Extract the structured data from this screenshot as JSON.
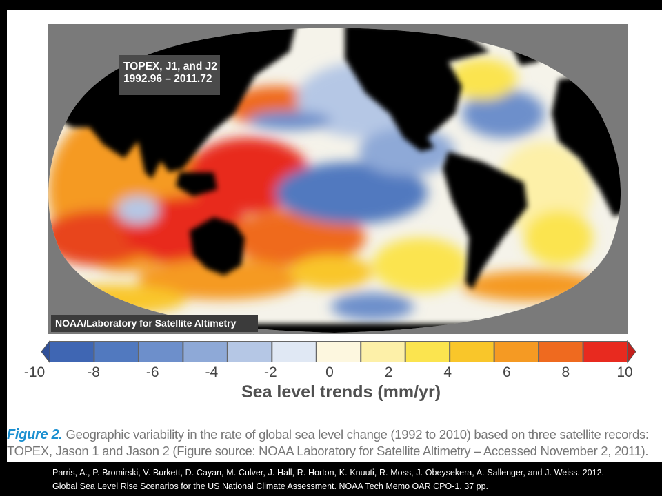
{
  "map": {
    "label_line1": "TOPEX, J1, and J2",
    "label_line2": "1992.96 – 2011.72",
    "credit": "NOAA/Laboratory for Satellite Altimetry"
  },
  "colorbar": {
    "title": "Sea level trends (mm/yr)",
    "ticks": [
      "-10",
      "-8",
      "-6",
      "-4",
      "-2",
      "0",
      "2",
      "4",
      "6",
      "8",
      "10"
    ],
    "colors": [
      "#3f66b3",
      "#5179bf",
      "#6d8fcb",
      "#8ea9d7",
      "#b5c7e5",
      "#e0e8f4",
      "#fdf7df",
      "#fdf0a8",
      "#fbe44f",
      "#f9c62a",
      "#f59a23",
      "#ef6a1f",
      "#e82a1f"
    ],
    "low_arrow_color": "#2f4f98",
    "high_arrow_color": "#c4201c"
  },
  "caption": {
    "figure_label": "Figure 2.",
    "text": " Geographic variability in the rate of global sea level change (1992 to 2010) based on three satellite records: TOPEX, Jason 1 and Jason 2 (Figure source: NOAA Laboratory for Satellite Altimetry – Accessed November 2, 2011)."
  },
  "citation": "Parris, A., P. Bromirski, V. Burkett, D. Cayan, M. Culver, J. Hall, R. Horton, K. Knuuti, R. Moss, J. Obeysekera, A. Sallenger, and J. Weiss. 2012. Global Sea Level Rise Scenarios for the US National Climate Assessment. NOAA Tech Memo OAR CPO-1. 37 pp."
}
